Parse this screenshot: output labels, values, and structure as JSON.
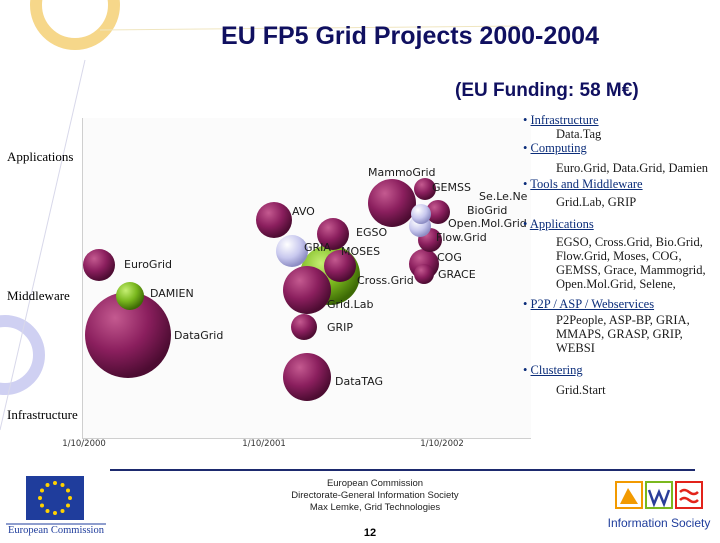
{
  "slide": {
    "title": "EU FP5 Grid Projects 2000-2004",
    "subtitle": "(EU Funding: 58 M€)",
    "page_number": "12"
  },
  "row_labels": [
    "Applications",
    "Middleware",
    "Infrastructure"
  ],
  "x_ticks": [
    "1/10/2000",
    "1/10/2001",
    "1/10/2002"
  ],
  "chart_data": {
    "type": "scatter",
    "title": "",
    "xlabel": "",
    "ylabel": "",
    "x_ticks": [
      "1/10/2000",
      "1/10/2001",
      "1/10/2002"
    ],
    "y_categories": [
      "Applications",
      "Middleware",
      "Infrastructure"
    ],
    "points": [
      {
        "label": "MammoGrid",
        "x": "2002-05",
        "y": "Applications",
        "color": "#8b1f5e"
      },
      {
        "label": "GEMSS",
        "x": "2002-09",
        "y": "Applications",
        "color": "#8b1f5e"
      },
      {
        "label": "Se.Le.Ne",
        "x": "2002-09",
        "y": "Applications",
        "color": "#c8c8ee"
      },
      {
        "label": "BioGrid",
        "x": "2002-09",
        "y": "Applications",
        "color": "#8b1f5e"
      },
      {
        "label": "Open.Mol.Grid",
        "x": "2002-09",
        "y": "Applications",
        "color": "#c8c8ee"
      },
      {
        "label": "Flow.Grid",
        "x": "2002-09",
        "y": "Applications",
        "color": "#8b1f5e"
      },
      {
        "label": "AVO",
        "x": "2001-11",
        "y": "Applications",
        "color": "#8b1f5e"
      },
      {
        "label": "EGSO",
        "x": "2002-03",
        "y": "Applications",
        "color": "#8b1f5e"
      },
      {
        "label": "COG",
        "x": "2002-09",
        "y": "Applications",
        "color": "#8b1f5e"
      },
      {
        "label": "GRIA",
        "x": "2001-12",
        "y": "Applications",
        "color": "#c8c8ee"
      },
      {
        "label": "MOSES",
        "x": "2002-01",
        "y": "Applications",
        "color": "#8b1f5e"
      },
      {
        "label": "GRACE",
        "x": "2002-09",
        "y": "Applications",
        "color": "#8b1f5e"
      },
      {
        "label": "EuroGrid",
        "x": "2000-11",
        "y": "Middleware",
        "color": "#8b1f5e"
      },
      {
        "label": "Cross.Grid",
        "x": "2002-02",
        "y": "Middleware",
        "color": "#7ab81e"
      },
      {
        "label": "DAMIEN",
        "x": "2001-01",
        "y": "Middleware",
        "color": "#7ab81e"
      },
      {
        "label": "Grid.Lab",
        "x": "2002-01",
        "y": "Middleware",
        "color": "#8b1f5e"
      },
      {
        "label": "GRIP",
        "x": "2002-01",
        "y": "Middleware",
        "color": "#8b1f5e"
      },
      {
        "label": "DataGrid",
        "x": "2001-01",
        "y": "Infrastructure",
        "color": "#8b1f5e"
      },
      {
        "label": "DataTAG",
        "x": "2002-03",
        "y": "Infrastructure",
        "color": "#8b1f5e"
      }
    ],
    "grid": false,
    "legend": "none"
  },
  "right_list": [
    {
      "category": "Infrastructure",
      "items": "Data.Tag"
    },
    {
      "category": "Computing",
      "items": "Euro.Grid, Data.Grid, Damien"
    },
    {
      "category": "Tools and Middleware",
      "items": "Grid.Lab, GRIP"
    },
    {
      "category": "Applications",
      "items": "EGSO, Cross.Grid, Bio.Grid, Flow.Grid, Moses, COG, GEMSS, Grace, Mammogrid, Open.Mol.Grid, Selene,"
    },
    {
      "category": "P2P / ASP / Webservices",
      "items": "P2People, ASP-BP, GRIA, MMAPS, GRASP, GRIP, WEBSI"
    },
    {
      "category": "Clustering",
      "items": "Grid.Start"
    }
  ],
  "footer": {
    "line1": "European Commission",
    "line2": "Directorate-General Information Society",
    "line3": "Max Lemke, Grid Technologies"
  },
  "logos": {
    "ec_label": "European Commission",
    "is_label": "Information Society"
  },
  "colors": {
    "title": "#101060",
    "bubble_purple": "#8b1f5e",
    "bubble_green": "#7ab81e",
    "bubble_lilac": "#c8c8ee",
    "footer_rule": "#1d2a6e"
  }
}
